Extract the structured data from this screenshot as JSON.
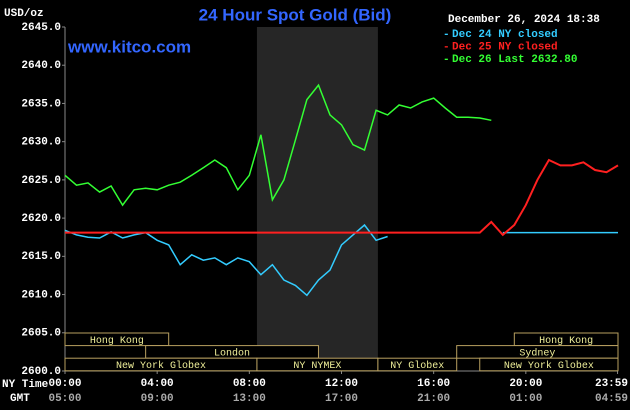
{
  "chart_data": {
    "type": "line",
    "title": "24 Hour Spot Gold (Bid)",
    "timestamp": "December 26, 2024 18:38",
    "y_label": "USD/oz",
    "watermark": "www.kitco.com",
    "x_label": "NY Time",
    "x2_label": "GMT",
    "xlim": [
      0,
      24
    ],
    "xticks": [
      {
        "value": 0,
        "label": "00:00"
      },
      {
        "value": 4,
        "label": "04:00"
      },
      {
        "value": 8,
        "label": "08:00"
      },
      {
        "value": 12,
        "label": "12:00"
      },
      {
        "value": 16,
        "label": "16:00"
      },
      {
        "value": 20,
        "label": "20:00"
      },
      {
        "value": 23.98,
        "label": "23:59"
      }
    ],
    "gmt_labels": [
      "05:00",
      "09:00",
      "13:00",
      "17:00",
      "21:00",
      "01:00",
      "04:59"
    ],
    "ylim": [
      2600,
      2645
    ],
    "yticks": [
      {
        "value": 2600,
        "label": "2600.0"
      },
      {
        "value": 2605,
        "label": "2605.0"
      },
      {
        "value": 2610,
        "label": "2610.0"
      },
      {
        "value": 2615,
        "label": "2615.0"
      },
      {
        "value": 2620,
        "label": "2620.0"
      },
      {
        "value": 2625,
        "label": "2625.0"
      },
      {
        "value": 2630,
        "label": "2630.0"
      },
      {
        "value": 2635,
        "label": "2635.0"
      },
      {
        "value": 2640,
        "label": "2640.0"
      },
      {
        "value": 2645,
        "label": "2645.0"
      }
    ],
    "x": [
      0,
      0.5,
      1,
      1.5,
      2,
      2.5,
      3,
      3.5,
      4,
      4.5,
      5,
      5.5,
      6,
      6.5,
      7,
      7.5,
      8,
      8.5,
      9,
      9.5,
      10,
      10.5,
      11,
      11.5,
      12,
      12.5,
      13,
      13.5,
      14,
      14.5,
      15,
      15.5,
      16,
      16.5,
      17,
      17.5,
      18,
      18.5,
      19,
      19.5,
      20,
      20.5,
      21,
      21.5,
      22,
      22.5,
      23,
      23.5,
      24
    ],
    "series": [
      {
        "name": "Dec 24 NY closed",
        "color": "#33ccff",
        "values": [
          2618.4,
          2617.8,
          2617.5,
          2617.4,
          2618.2,
          2617.4,
          2617.8,
          2618.1,
          2617.1,
          2616.5,
          2613.9,
          2615.2,
          2614.5,
          2614.8,
          2613.9,
          2614.8,
          2614.3,
          2612.6,
          2613.9,
          2611.9,
          2611.2,
          2609.9,
          2611.9,
          2613.2,
          2616.5,
          2617.8,
          2619.1,
          2617.1,
          2617.6,
          null,
          null,
          null,
          null,
          null,
          null,
          null,
          null,
          null,
          2618.1,
          2618.1,
          2618.1,
          2618.1,
          2618.1,
          2618.1,
          2618.1,
          2618.1,
          2618.1,
          2618.1,
          2618.1
        ]
      },
      {
        "name": "Dec 25 NY closed",
        "color": "#ff2020",
        "values": [
          2618.1,
          2618.1,
          2618.1,
          2618.1,
          2618.1,
          2618.1,
          2618.1,
          2618.1,
          2618.1,
          2618.1,
          2618.1,
          2618.1,
          2618.1,
          2618.1,
          2618.1,
          2618.1,
          2618.1,
          2618.1,
          2618.1,
          2618.1,
          2618.1,
          2618.1,
          2618.1,
          2618.1,
          2618.1,
          2618.1,
          2618.1,
          2618.1,
          2618.1,
          2618.1,
          2618.1,
          2618.1,
          2618.1,
          2618.1,
          2618.1,
          2618.1,
          2618.1,
          2619.5,
          2617.8,
          2619.1,
          2621.7,
          2625.0,
          2627.6,
          2626.9,
          2626.9,
          2627.3,
          2626.3,
          2626.0,
          2626.9
        ]
      },
      {
        "name": "Dec 26 Last 2632.80",
        "color": "#33ff33",
        "values": [
          2625.6,
          2624.3,
          2624.6,
          2623.4,
          2624.2,
          2621.7,
          2623.7,
          2623.9,
          2623.7,
          2624.3,
          2624.7,
          2625.6,
          2626.6,
          2627.6,
          2626.6,
          2623.7,
          2625.6,
          2630.9,
          2622.4,
          2625.0,
          2630.2,
          2635.5,
          2637.4,
          2633.5,
          2632.2,
          2629.6,
          2628.9,
          2634.1,
          2633.5,
          2634.8,
          2634.4,
          2635.2,
          2635.7,
          2634.4,
          2633.2,
          2633.2,
          2633.1,
          2632.8,
          null,
          null,
          null,
          null,
          null,
          null,
          null,
          null,
          null,
          null,
          null
        ]
      }
    ],
    "sessions": [
      {
        "label": "Hong Kong",
        "start": 0,
        "end": 4.5
      },
      {
        "label": "London",
        "start": 3.5,
        "end": 11
      },
      {
        "label": "New York Globex",
        "start": 0,
        "end": 8.33
      },
      {
        "label": "NY NYMEX",
        "start": 8.33,
        "end": 13.58
      },
      {
        "label": "NY Globex",
        "start": 13.58,
        "end": 17
      },
      {
        "label": "Hong Kong",
        "start": 19.5,
        "end": 24
      },
      {
        "label": "Sydney",
        "start": 17,
        "end": 24
      },
      {
        "label": "New York Globex",
        "start": 18,
        "end": 24
      }
    ]
  }
}
